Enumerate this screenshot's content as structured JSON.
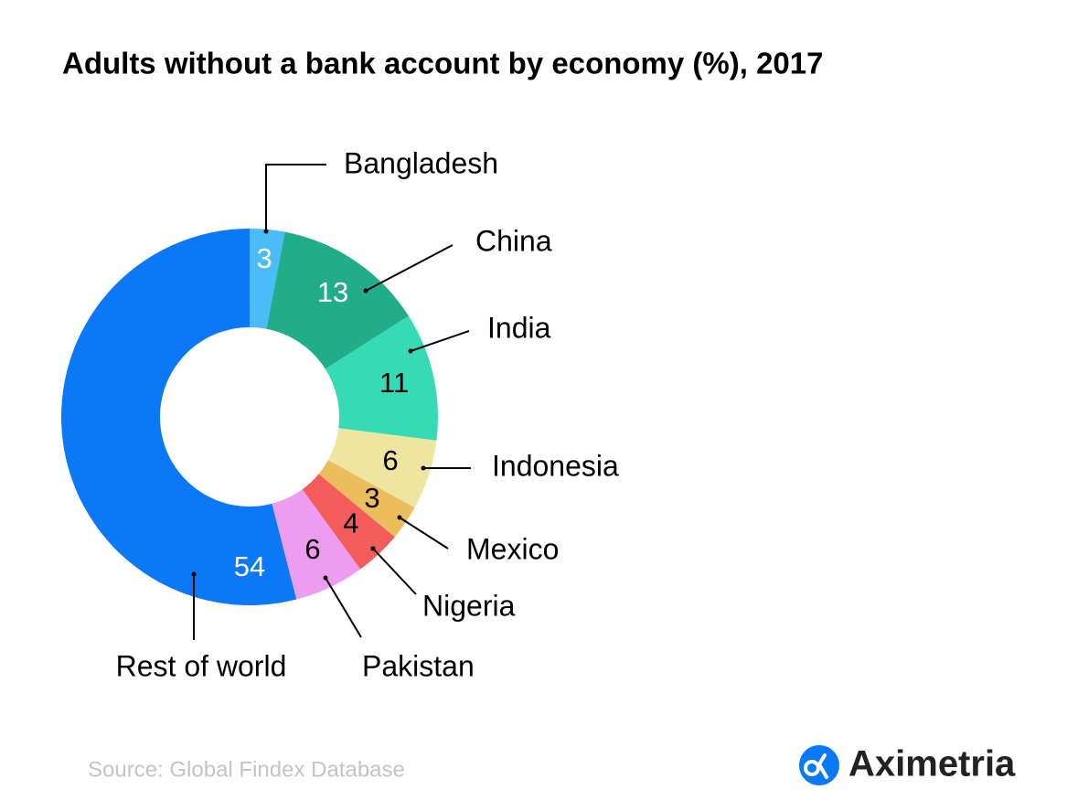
{
  "chart_data": {
    "type": "donut",
    "title": "Adults without a bank account by economy (%), 2017",
    "categories": [
      "Bangladesh",
      "China",
      "India",
      "Indonesia",
      "Mexico",
      "Nigeria",
      "Pakistan",
      "Rest of world"
    ],
    "values": [
      3,
      13,
      11,
      6,
      3,
      4,
      6,
      54
    ],
    "colors": [
      "#4bbcf8",
      "#22ad8a",
      "#36dbb6",
      "#eee6a0",
      "#ebbd5c",
      "#f45c5c",
      "#ee9cf0",
      "#0b78f5"
    ],
    "source": "Source: Global Findex Database"
  },
  "logo": {
    "text": "Aximetria"
  }
}
